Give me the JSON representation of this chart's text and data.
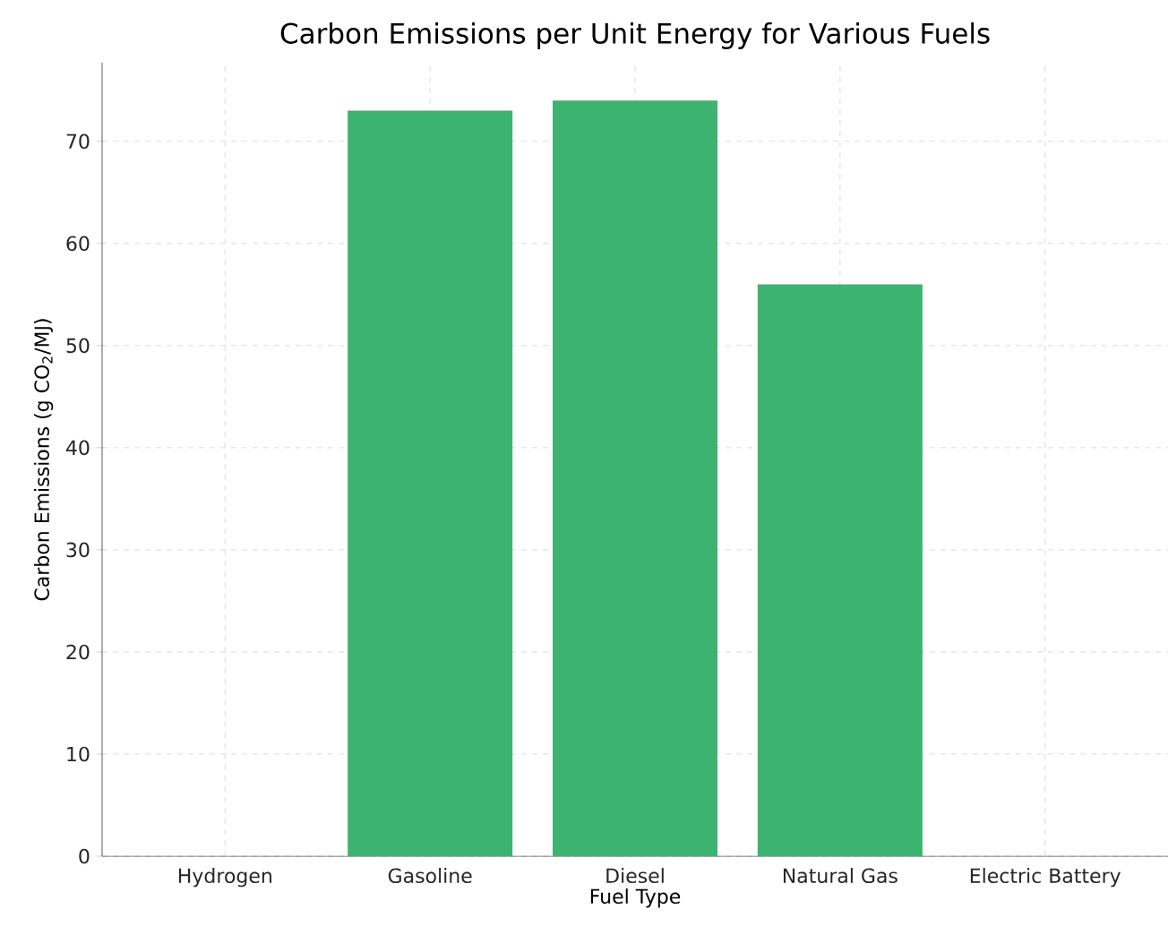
{
  "chart_data": {
    "type": "bar",
    "title": "Carbon Emissions per Unit Energy for Various Fuels",
    "xlabel": "Fuel Type",
    "ylabel": "Carbon Emissions (g CO$_{2}$/MJ)",
    "categories": [
      "Hydrogen",
      "Gasoline",
      "Diesel",
      "Natural Gas",
      "Electric Battery"
    ],
    "values": [
      0,
      73,
      74,
      56,
      0
    ],
    "color": "#3cb371",
    "ylim": [
      0,
      77.7
    ],
    "yticks": [
      0,
      10,
      20,
      30,
      40,
      50,
      60,
      70
    ],
    "grid": true
  }
}
